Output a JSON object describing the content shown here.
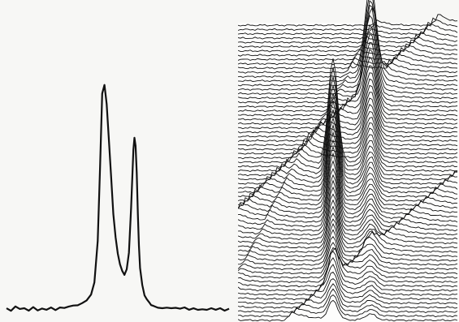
{
  "figure": {
    "background": "#f7f7f5",
    "ink": "#111111"
  },
  "chart_data": [
    {
      "type": "line",
      "title": "",
      "xlabel": "",
      "ylabel": "",
      "axes": "none",
      "grid": false,
      "series": [
        {
          "x": [
            0,
            0.02,
            0.04,
            0.06,
            0.08,
            0.1,
            0.12,
            0.14,
            0.16,
            0.18,
            0.2,
            0.22,
            0.24,
            0.26,
            0.28,
            0.3,
            0.32,
            0.34,
            0.36,
            0.38,
            0.395,
            0.41,
            0.42,
            0.43,
            0.44,
            0.45,
            0.46,
            0.47,
            0.48,
            0.49,
            0.5,
            0.51,
            0.52,
            0.53,
            0.54,
            0.55,
            0.56,
            0.57,
            0.575,
            0.58,
            0.585,
            0.59,
            0.595,
            0.6,
            0.61,
            0.62,
            0.63,
            0.64,
            0.65,
            0.66,
            0.68,
            0.7,
            0.72,
            0.74,
            0.76,
            0.78,
            0.8,
            0.82,
            0.84,
            0.86,
            0.88,
            0.9,
            0.92,
            0.94,
            0.96,
            0.98,
            1.0
          ],
          "values": [
            0.01,
            0.0,
            0.015,
            0.005,
            0.01,
            0.0,
            0.012,
            0.004,
            0.01,
            0.003,
            0.012,
            0.005,
            0.015,
            0.008,
            0.018,
            0.02,
            0.025,
            0.03,
            0.045,
            0.07,
            0.12,
            0.3,
            0.62,
            0.95,
            0.98,
            0.9,
            0.75,
            0.58,
            0.42,
            0.32,
            0.25,
            0.2,
            0.17,
            0.16,
            0.18,
            0.25,
            0.45,
            0.7,
            0.75,
            0.72,
            0.6,
            0.42,
            0.28,
            0.19,
            0.11,
            0.07,
            0.05,
            0.035,
            0.025,
            0.02,
            0.015,
            0.012,
            0.01,
            0.008,
            0.012,
            0.005,
            0.01,
            0.003,
            0.012,
            0.005,
            0.01,
            0.002,
            0.01,
            0.004,
            0.01,
            0.003,
            0.008
          ]
        }
      ]
    },
    {
      "type": "waterfall",
      "title": "",
      "xlabel": "",
      "ylabel": "",
      "axes": "none",
      "grid": false,
      "traces": 70,
      "ridges": [
        {
          "path": [
            [
              0.05,
              0.6
            ],
            [
              0.9,
              0.0
            ]
          ],
          "height": 0.04
        },
        {
          "path": [
            [
              0.45,
              0.85
            ],
            [
              1.0,
              0.5
            ]
          ],
          "height": 0.03
        },
        {
          "path": [
            [
              0.4,
              0.3
            ],
            [
              0.55,
              0.1
            ]
          ],
          "height": 0.02
        }
      ],
      "peaks": [
        {
          "x": 0.43,
          "depth": 0.45,
          "height": 0.35,
          "width": 0.03
        },
        {
          "x": 0.6,
          "depth": 0.15,
          "height": 0.3,
          "width": 0.035
        }
      ]
    }
  ]
}
